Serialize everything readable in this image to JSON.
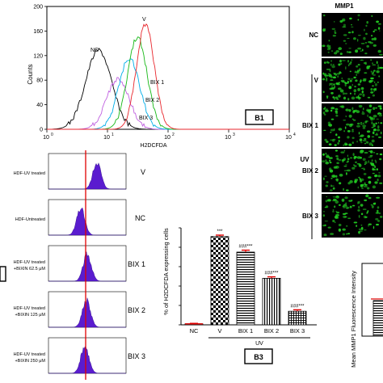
{
  "panel_b1": {
    "yaxis_label": "Counts",
    "xaxis_label": "H2DCFDA",
    "yticks": [
      "0",
      "40",
      "80",
      "120",
      "160",
      "200"
    ],
    "xticks": [
      "10",
      "10",
      "10",
      "10",
      "10"
    ],
    "xtick_exponents": [
      "0",
      "1",
      "2",
      "3",
      "4"
    ],
    "curve_labels": [
      "NC",
      "V",
      "BIX 1",
      "BIX 2",
      "BIX 3"
    ],
    "panel_label": "B1",
    "colors": {
      "NC": "#000000",
      "V": "#e8262c",
      "BIX 1": "#16b816",
      "BIX 2": "#00aee8",
      "BIX 3": "#c060e0"
    }
  },
  "panel_b2": {
    "rows": [
      {
        "sample": "HDF-UV treated",
        "group": "V"
      },
      {
        "sample": "HDF-Untreated",
        "group": "NC"
      },
      {
        "sample": "HDF-UV treated\n+BIXIN 62.5 μM",
        "group": "BIX 1"
      },
      {
        "sample": "HDF-UV treated\n+BIXIN 125 μM",
        "group": "BIX 2"
      },
      {
        "sample": "HDF-UV treated\n+BIXIN 250 μM",
        "group": "BIX 3"
      }
    ],
    "fill_color": "#5a1ccf",
    "marker_color": "#e00000"
  },
  "panel_b3": {
    "ylabel": "% of H2DCFDA expressing cells",
    "group_label": "UV",
    "panel_label": "B3",
    "sig_labels": [
      "",
      "***",
      "###***",
      "###***",
      "###***"
    ]
  },
  "chart_data": {
    "type": "bar",
    "categories": [
      "NC",
      "V",
      "BIX 1",
      "BIX 2",
      "BIX 3"
    ],
    "values": [
      1,
      91,
      75,
      48,
      14
    ],
    "errors": [
      0.5,
      1.5,
      2,
      1.5,
      1.5
    ],
    "ylim": [
      0,
      100
    ],
    "title": "",
    "xlabel": "",
    "ylabel": "% of H2DCFDA expressing cells"
  },
  "panel_mmp1": {
    "title": "MMP1",
    "group_label": "UV",
    "row_labels": [
      "NC",
      "V",
      "BIX 1",
      "BIX 2",
      "BIX 3"
    ],
    "fluorescence_color": "#22cc22"
  },
  "panel_mmp1_bar": {
    "ylabel": "Mean MMP1 Fluorescence Intensity"
  }
}
